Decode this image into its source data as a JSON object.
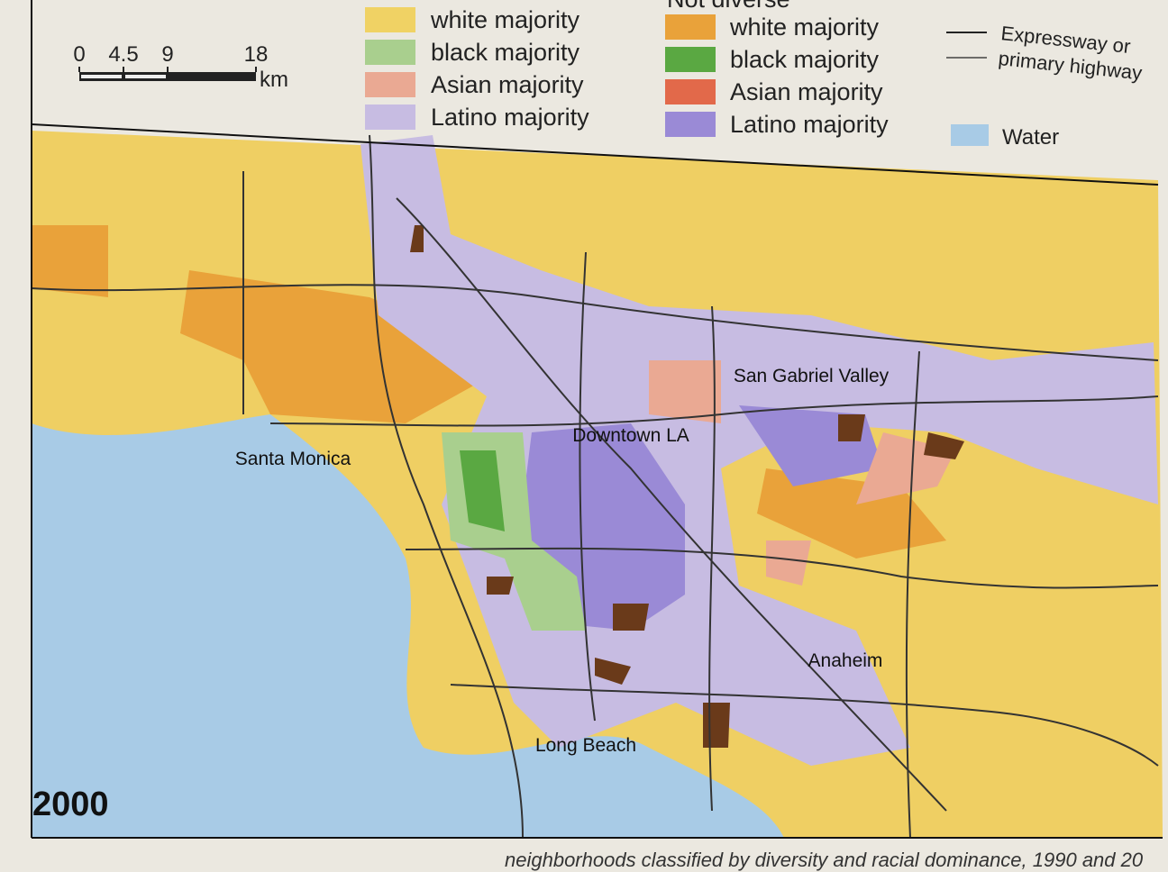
{
  "legend": {
    "groups": [
      {
        "items": [
          {
            "label": "white majority",
            "color": "#f0d264"
          },
          {
            "label": "black majority",
            "color": "#a9cf8e"
          },
          {
            "label": "Asian majority",
            "color": "#eaa993"
          },
          {
            "label": "Latino majority",
            "color": "#c7bce2"
          }
        ]
      },
      {
        "title": "Not diverse",
        "items": [
          {
            "label": "white majority",
            "color": "#e9a23a"
          },
          {
            "label": "black majority",
            "color": "#5aa842"
          },
          {
            "label": "Asian majority",
            "color": "#e2694a"
          },
          {
            "label": "Latino majority",
            "color": "#9a8ad6"
          }
        ]
      }
    ],
    "highway": "Expressway or primary highway",
    "water": {
      "label": "Water",
      "color": "#a8cbe6"
    }
  },
  "scale": {
    "ticks": [
      0,
      4.5,
      9,
      18
    ],
    "unit": "km"
  },
  "map_labels": [
    "Santa Monica",
    "Downtown LA",
    "San Gabriel Valley",
    "Anaheim",
    "Long Beach"
  ],
  "year": "2000",
  "caption": "neighborhoods classified by diversity and racial dominance, 1990 and 20"
}
